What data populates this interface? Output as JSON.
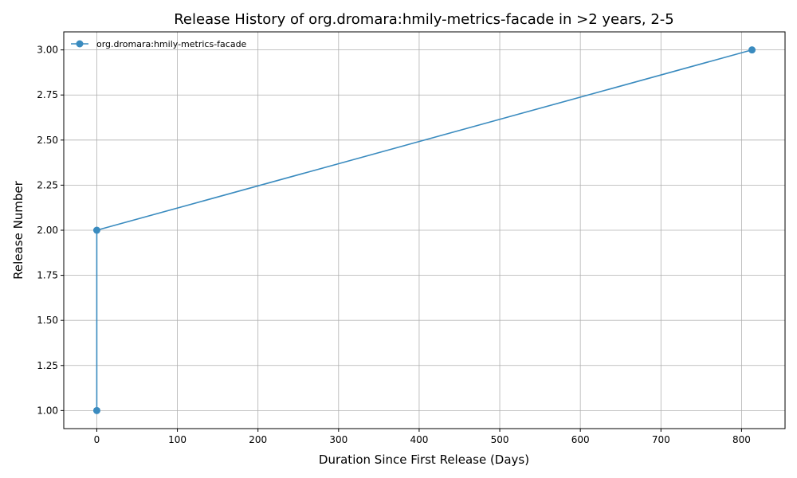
{
  "chart_data": {
    "type": "line",
    "title": "Release History of org.dromara:hmily-metrics-facade in >2 years, 2-5",
    "xlabel": "Duration Since First Release (Days)",
    "ylabel": "Release Number",
    "xlim": [
      -41,
      854
    ],
    "ylim": [
      0.9,
      3.1
    ],
    "xticks": [
      0,
      100,
      200,
      300,
      400,
      500,
      600,
      700,
      800
    ],
    "xtick_labels": [
      "0",
      "100",
      "200",
      "300",
      "400",
      "500",
      "600",
      "700",
      "800"
    ],
    "yticks": [
      1.0,
      1.25,
      1.5,
      1.75,
      2.0,
      2.25,
      2.5,
      2.75,
      3.0
    ],
    "ytick_labels": [
      "1.00",
      "1.25",
      "1.50",
      "1.75",
      "2.00",
      "2.25",
      "2.50",
      "2.75",
      "3.00"
    ],
    "grid": true,
    "legend_position": "top-left",
    "series": [
      {
        "name": "org.dromara:hmily-metrics-facade",
        "color": "#3a8bbf",
        "marker": "circle",
        "points": [
          {
            "x": 0,
            "y": 1
          },
          {
            "x": 0,
            "y": 2
          },
          {
            "x": 813,
            "y": 3
          }
        ]
      }
    ]
  }
}
